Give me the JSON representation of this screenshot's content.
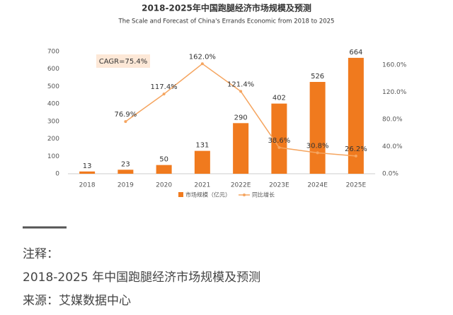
{
  "chart_data": {
    "type": "bar-line",
    "title": "2018-2025年中国跑腿经济市场规模及预测",
    "subtitle": "The Scale and Forecast of China's Errands Economic from 2018 to 2025",
    "annotation": "CAGR=75.4%",
    "categories": [
      "2018",
      "2019",
      "2020",
      "2021",
      "2022E",
      "2023E",
      "2024E",
      "2025E"
    ],
    "series": [
      {
        "name": "市场规模（亿元）",
        "color": "#f07a1e",
        "values": [
          13,
          23,
          50,
          131,
          290,
          402,
          526,
          664
        ]
      },
      {
        "name": "同比增长",
        "color": "#f5a560",
        "axis": "y2",
        "values": [
          null,
          76.9,
          117.4,
          162.0,
          121.4,
          38.6,
          30.8,
          26.2
        ],
        "value_labels": [
          null,
          "76.9%",
          "117.4%",
          "162.0%",
          "121.4%",
          "38.6%",
          "30.8%",
          "26.2%"
        ]
      }
    ],
    "ylim": [
      0,
      700
    ],
    "yticks": [
      0,
      100,
      200,
      300,
      400,
      500,
      600,
      700
    ],
    "y2lim": [
      0,
      180
    ],
    "y2ticks": [
      {
        "value": 0,
        "label": "0.0%"
      },
      {
        "value": 40,
        "label": "40.0%"
      },
      {
        "value": 80,
        "label": "80.0%"
      },
      {
        "value": 120,
        "label": "120.0%"
      },
      {
        "value": 160,
        "label": "160.0%"
      }
    ],
    "grid": false
  },
  "notes": {
    "label": "注释：",
    "text": "2018-2025 年中国跑腿经济市场规模及预测",
    "source": "来源：艾媒数据中心"
  }
}
